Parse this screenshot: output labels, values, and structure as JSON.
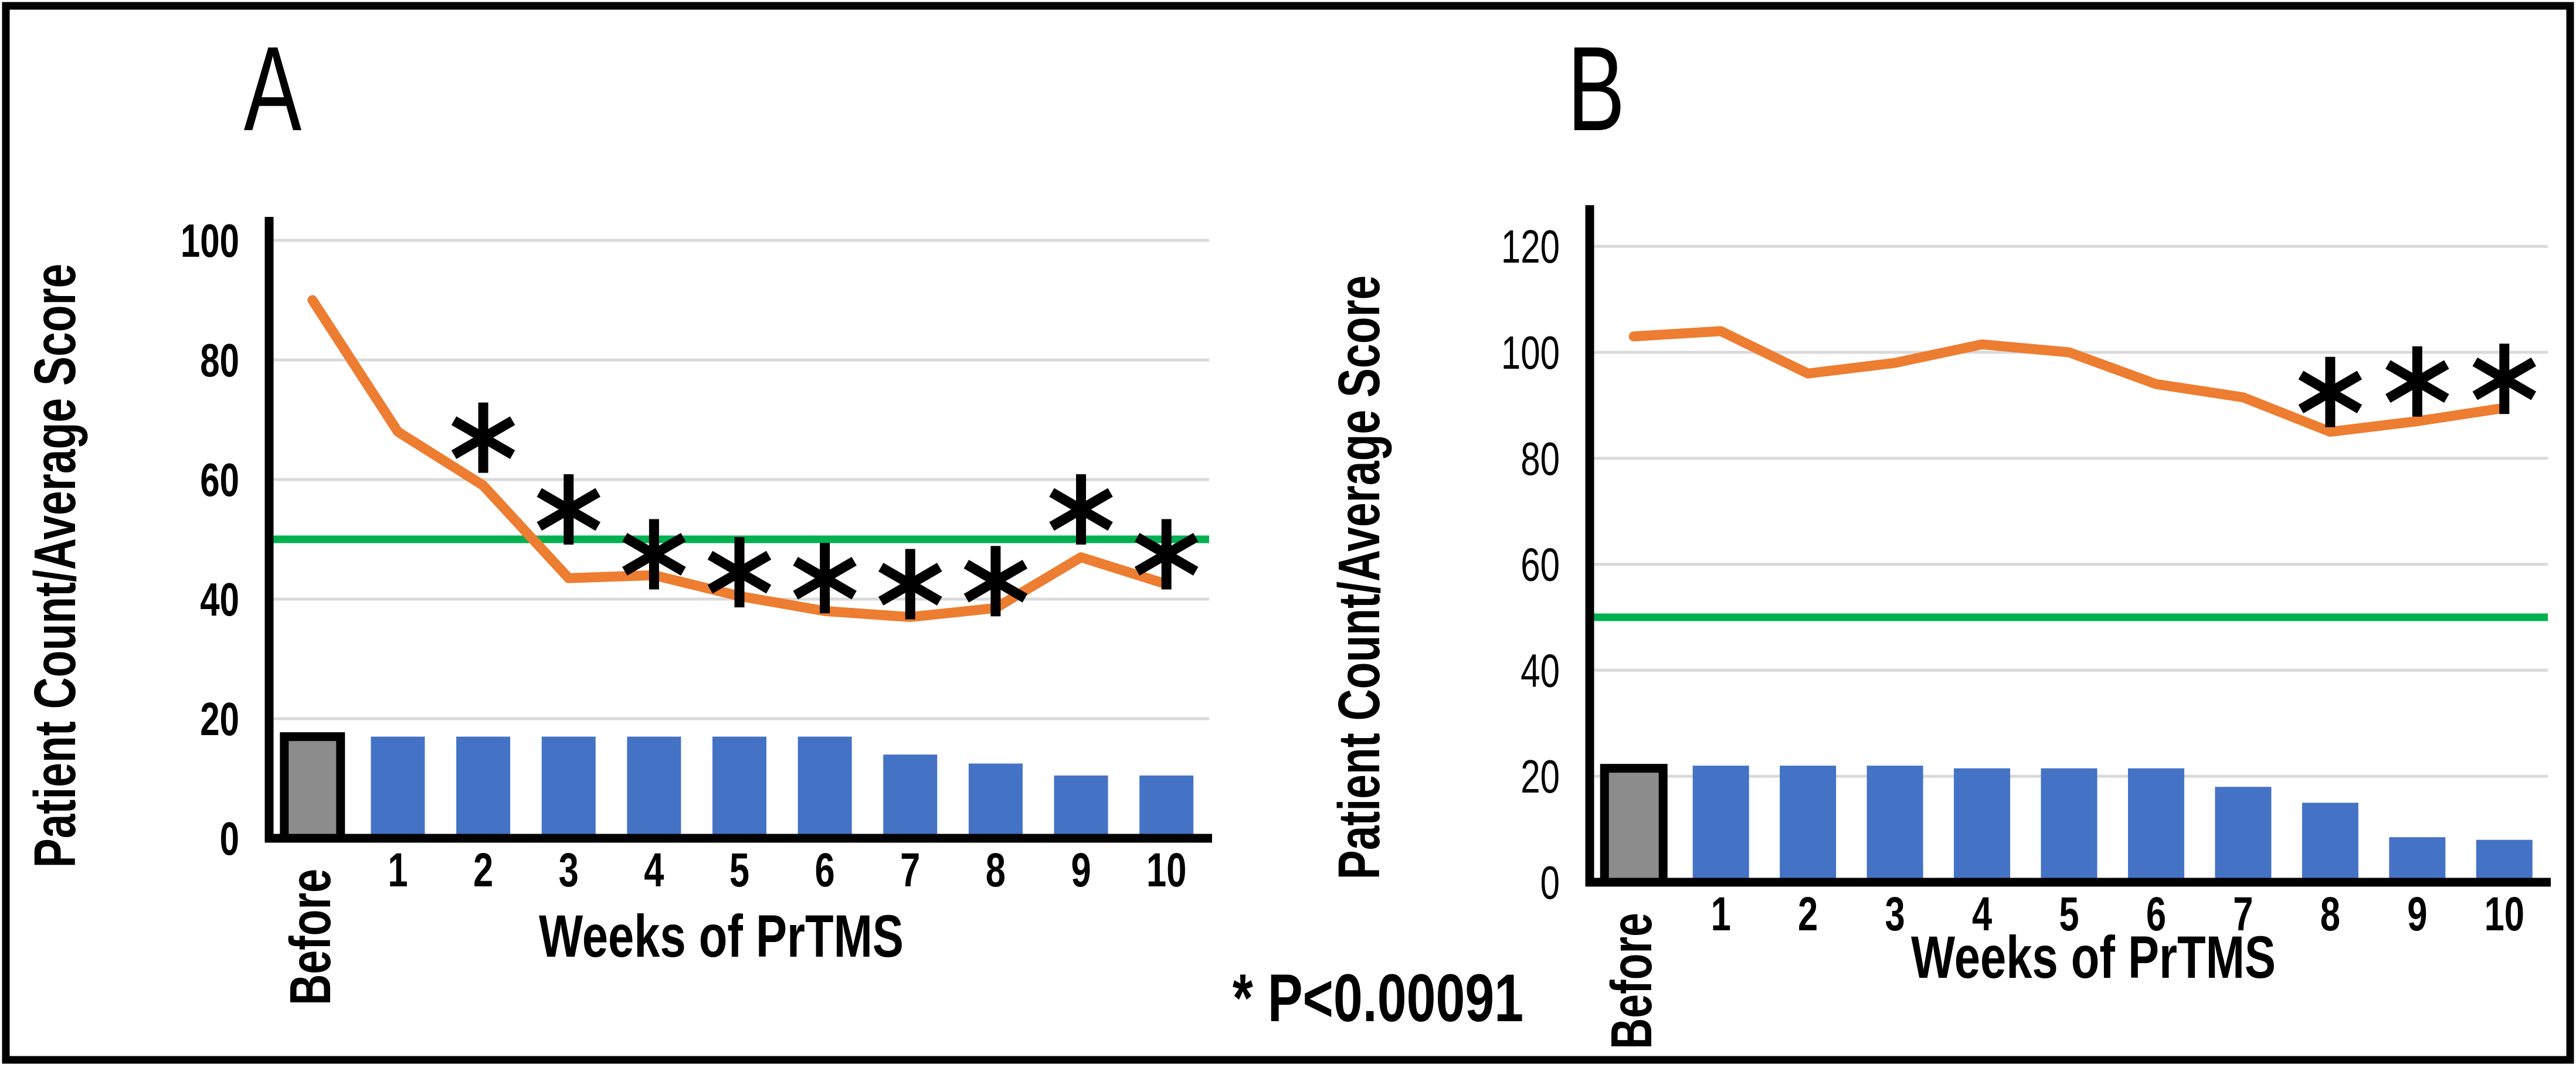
{
  "note": {
    "text": "* P<0.00091"
  },
  "colors": {
    "trend_line": "#ED7D31",
    "bar_fill": "#4472C4",
    "before_bar_fill": "#8C8C8C",
    "before_bar_border": "#000000",
    "reference_line": "#00B050",
    "gridline": "#D9D9D9",
    "axis": "#000000",
    "text": "#000000",
    "figure_border": "#000000"
  },
  "chart_data": [
    {
      "type": "bar+line",
      "panel_label": "A",
      "xlabel": "Weeks of PrTMS",
      "ylabel": "Patient Count/Average Score",
      "categories": [
        "Before",
        "1",
        "2",
        "3",
        "4",
        "5",
        "6",
        "7",
        "8",
        "9",
        "10"
      ],
      "yticks": [
        0,
        20,
        40,
        60,
        80,
        100
      ],
      "ylim": [
        0,
        104
      ],
      "grid": true,
      "legend": "none",
      "reference_line_y": 50,
      "series": [
        {
          "name": "Patient Count (bars)",
          "type": "bar",
          "values": [
            17,
            17,
            17,
            17,
            17,
            17,
            17,
            14,
            12.5,
            10.5,
            10.5
          ]
        },
        {
          "name": "Average Score (line)",
          "type": "line",
          "values": [
            90,
            68,
            59,
            43.5,
            44,
            40.5,
            38,
            37,
            38.5,
            47,
            42.5
          ]
        }
      ],
      "significance_markers": [
        {
          "week": "2",
          "y": 67
        },
        {
          "week": "3",
          "y": 55
        },
        {
          "week": "4",
          "y": 47.5
        },
        {
          "week": "5",
          "y": 44.5
        },
        {
          "week": "6",
          "y": 43.5
        },
        {
          "week": "7",
          "y": 42.5
        },
        {
          "week": "8",
          "y": 43
        },
        {
          "week": "9",
          "y": 55
        },
        {
          "week": "10",
          "y": 47.5
        }
      ]
    },
    {
      "type": "bar+line",
      "panel_label": "B",
      "xlabel": "Weeks of PrTMS",
      "ylabel": "Patient Count/Average Score",
      "categories": [
        "Before",
        "1",
        "2",
        "3",
        "4",
        "5",
        "6",
        "7",
        "8",
        "9",
        "10"
      ],
      "yticks": [
        0,
        20,
        40,
        60,
        80,
        100,
        120
      ],
      "ylim": [
        0,
        128
      ],
      "grid": true,
      "legend": "none",
      "reference_line_y": 50,
      "series": [
        {
          "name": "Patient Count (bars)",
          "type": "bar",
          "values": [
            21.5,
            22,
            22,
            22,
            21.5,
            21.5,
            21.5,
            18,
            15,
            8.5,
            8
          ]
        },
        {
          "name": "Average Score (line)",
          "type": "line",
          "values": [
            103,
            104,
            96,
            98,
            101.5,
            100,
            94,
            91.5,
            85,
            87,
            89.5
          ]
        }
      ],
      "significance_markers": [
        {
          "week": "8",
          "y": 92.5
        },
        {
          "week": "9",
          "y": 94.5
        },
        {
          "week": "10",
          "y": 95
        }
      ]
    }
  ]
}
